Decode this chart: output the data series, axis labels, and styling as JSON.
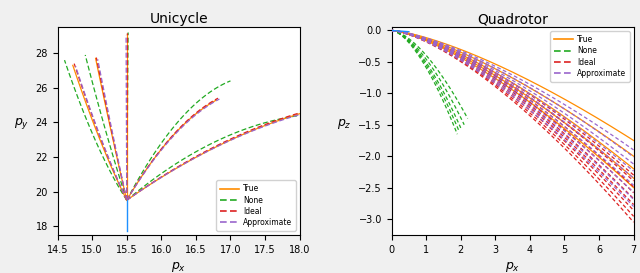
{
  "unicycle_title": "Unicycle",
  "quadrotor_title": "Quadrotor",
  "unicycle_xlabel": "$p_x$",
  "unicycle_ylabel": "$p_y$",
  "quadrotor_xlabel": "$p_x$",
  "quadrotor_ylabel": "$p_z$",
  "unicycle_xlim": [
    14.5,
    18.0
  ],
  "unicycle_ylim": [
    17.5,
    29.5
  ],
  "quadrotor_xlim": [
    0,
    7
  ],
  "quadrotor_ylim": [
    -3.25,
    0.05
  ],
  "true_color": "#FF8C00",
  "none_color": "#22AA22",
  "ideal_color": "#DD2222",
  "approx_color": "#9966CC",
  "blue_color": "#1E90FF",
  "fig_facecolor": "#F0F0F0",
  "ax_facecolor": "#FFFFFF"
}
